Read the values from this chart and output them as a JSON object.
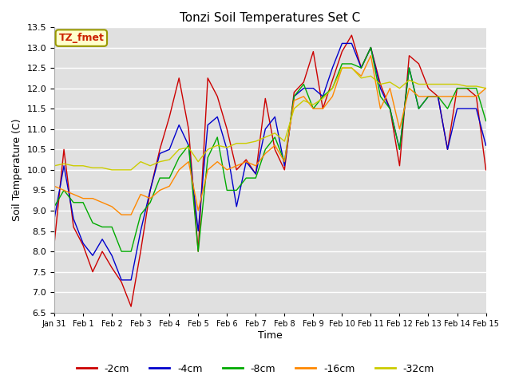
{
  "title": "Tonzi Soil Temperatures Set C",
  "xlabel": "Time",
  "ylabel": "Soil Temperature (C)",
  "ylim": [
    6.5,
    13.5
  ],
  "legend_label": "TZ_fmet",
  "series_labels": [
    "-2cm",
    "-4cm",
    "-8cm",
    "-16cm",
    "-32cm"
  ],
  "series_colors": [
    "#cc0000",
    "#0000cc",
    "#00aa00",
    "#ff8800",
    "#cccc00"
  ],
  "background_color": "#e0e0e0",
  "grid_color": "#ffffff",
  "x_tick_labels": [
    "Jan 31",
    "Feb 1",
    "Feb 2",
    "Feb 3",
    "Feb 4",
    "Feb 5",
    "Feb 6",
    "Feb 7",
    "Feb 8",
    "Feb 9",
    "Feb 10",
    "Feb 11",
    "Feb 12",
    "Feb 13",
    "Feb 14",
    "Feb 15"
  ],
  "data_2cm": [
    8.2,
    10.5,
    8.6,
    8.15,
    7.5,
    8.0,
    7.6,
    7.25,
    6.65,
    8.0,
    9.5,
    10.5,
    11.3,
    12.25,
    11.0,
    8.0,
    12.25,
    11.8,
    11.0,
    10.0,
    10.25,
    9.9,
    11.75,
    10.5,
    10.0,
    11.9,
    12.15,
    12.9,
    11.5,
    12.2,
    12.9,
    13.3,
    12.5,
    13.0,
    12.1,
    11.5,
    10.1,
    12.8,
    12.6,
    12.0,
    11.8,
    10.5,
    12.0,
    12.0,
    11.8,
    10.0
  ],
  "data_4cm": [
    8.8,
    10.1,
    8.8,
    8.2,
    7.9,
    8.3,
    7.9,
    7.3,
    7.3,
    8.5,
    9.5,
    10.4,
    10.5,
    11.1,
    10.6,
    8.5,
    11.1,
    11.3,
    10.5,
    9.1,
    10.2,
    9.9,
    11.0,
    11.3,
    10.1,
    11.8,
    12.0,
    12.0,
    11.8,
    12.5,
    13.1,
    13.1,
    12.5,
    13.0,
    12.0,
    11.5,
    10.5,
    12.5,
    11.5,
    11.8,
    11.8,
    10.5,
    11.5,
    11.5,
    11.5,
    10.6
  ],
  "data_8cm": [
    9.1,
    9.5,
    9.2,
    9.2,
    8.7,
    8.6,
    8.6,
    8.0,
    8.0,
    8.9,
    9.2,
    9.8,
    9.8,
    10.3,
    10.6,
    8.0,
    10.3,
    10.8,
    9.5,
    9.5,
    9.8,
    9.8,
    10.5,
    10.8,
    10.2,
    11.8,
    12.1,
    11.5,
    11.8,
    12.0,
    12.6,
    12.6,
    12.5,
    13.0,
    11.8,
    11.5,
    10.5,
    12.5,
    11.5,
    11.8,
    11.8,
    11.5,
    12.0,
    12.0,
    12.0,
    11.2
  ],
  "data_16cm": [
    9.6,
    9.5,
    9.4,
    9.3,
    9.3,
    9.2,
    9.1,
    8.9,
    8.9,
    9.4,
    9.3,
    9.5,
    9.6,
    10.0,
    10.2,
    9.0,
    10.0,
    10.2,
    10.0,
    10.1,
    10.2,
    10.1,
    10.4,
    10.6,
    10.2,
    11.7,
    11.8,
    11.5,
    11.5,
    11.8,
    12.5,
    12.5,
    12.3,
    12.8,
    11.5,
    12.0,
    11.0,
    12.0,
    11.8,
    11.8,
    11.8,
    11.8,
    11.8,
    11.8,
    11.8,
    12.0
  ],
  "data_32cm": [
    10.1,
    10.15,
    10.1,
    10.1,
    10.05,
    10.05,
    10.0,
    10.0,
    10.0,
    10.2,
    10.1,
    10.2,
    10.25,
    10.5,
    10.55,
    10.2,
    10.5,
    10.6,
    10.55,
    10.65,
    10.65,
    10.7,
    10.8,
    10.9,
    10.7,
    11.5,
    11.7,
    11.6,
    11.75,
    12.0,
    12.5,
    12.5,
    12.25,
    12.3,
    12.1,
    12.15,
    12.0,
    12.2,
    12.1,
    12.1,
    12.1,
    12.1,
    12.1,
    12.05,
    12.05,
    12.0
  ]
}
